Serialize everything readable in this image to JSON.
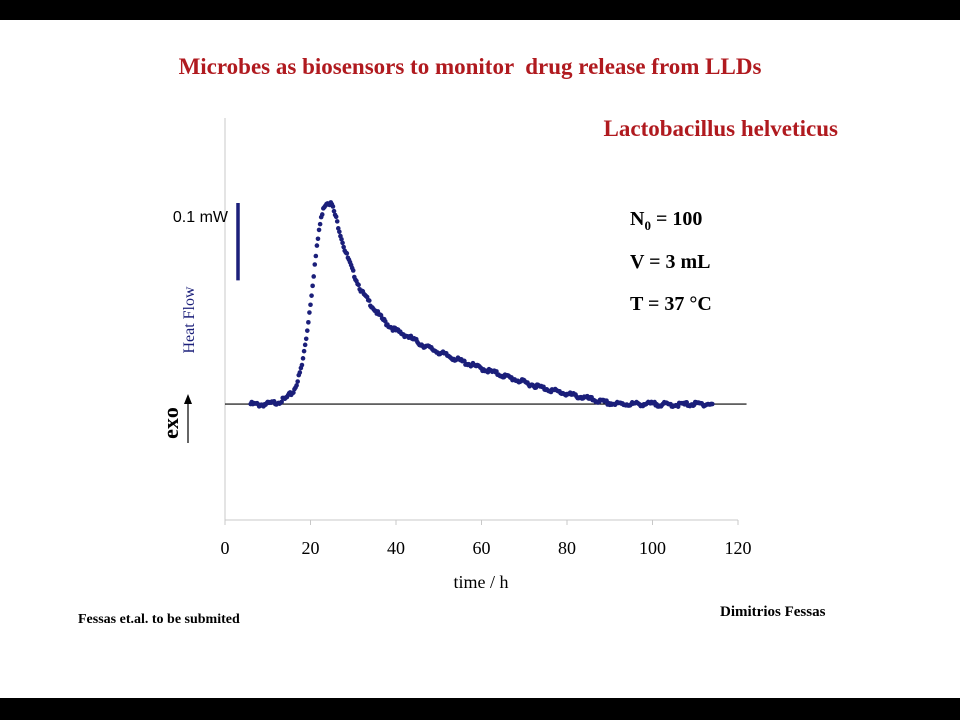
{
  "slide": {
    "title": "Microbes as biosensors to monitor  drug release from LLDs",
    "subtitle": "Lactobacillus helveticus",
    "params": [
      {
        "name": "N",
        "sub": "0",
        "rest": " = 100"
      },
      {
        "name": "V = 3 mL",
        "sub": "",
        "rest": ""
      },
      {
        "name": "T = 37 °C",
        "sub": "",
        "rest": ""
      }
    ],
    "footer_left": "Fessas et.al. to be submited",
    "footer_right": "Dimitrios Fessas"
  },
  "chart_data": {
    "type": "scatter",
    "xlabel": "time / h",
    "ylabel": "Heat Flow",
    "exo_label": "exo",
    "scale_bar_label": "0.1 mW",
    "scale_bar_value": 0.1,
    "xlim": [
      0,
      120
    ],
    "x_ticks": [
      0,
      20,
      40,
      60,
      80,
      100,
      120
    ],
    "ylim": [
      -0.15,
      0.37
    ],
    "baseline": 0,
    "marker_color": "#1b1f7a",
    "series": [
      {
        "points": [
          [
            6,
            0.0
          ],
          [
            8,
            -0.001
          ],
          [
            10,
            0.0
          ],
          [
            12,
            0.002
          ],
          [
            14,
            0.006
          ],
          [
            16,
            0.016
          ],
          [
            17,
            0.03
          ],
          [
            18,
            0.05
          ],
          [
            19,
            0.085
          ],
          [
            20,
            0.13
          ],
          [
            21,
            0.18
          ],
          [
            22,
            0.225
          ],
          [
            23,
            0.255
          ],
          [
            24,
            0.262
          ],
          [
            25,
            0.258
          ],
          [
            26,
            0.24
          ],
          [
            27,
            0.22
          ],
          [
            28,
            0.2
          ],
          [
            29,
            0.185
          ],
          [
            30,
            0.17
          ],
          [
            32,
            0.145
          ],
          [
            34,
            0.13
          ],
          [
            36,
            0.115
          ],
          [
            38,
            0.103
          ],
          [
            40,
            0.095
          ],
          [
            43,
            0.087
          ],
          [
            46,
            0.077
          ],
          [
            50,
            0.067
          ],
          [
            55,
            0.056
          ],
          [
            60,
            0.046
          ],
          [
            65,
            0.037
          ],
          [
            70,
            0.028
          ],
          [
            75,
            0.02
          ],
          [
            80,
            0.013
          ],
          [
            85,
            0.007
          ],
          [
            88,
            0.003
          ],
          [
            91,
            0.0
          ],
          [
            95,
            0.0
          ],
          [
            100,
            0.0
          ],
          [
            105,
            -0.001
          ],
          [
            110,
            0.0
          ],
          [
            114,
            0.0
          ]
        ]
      }
    ]
  }
}
